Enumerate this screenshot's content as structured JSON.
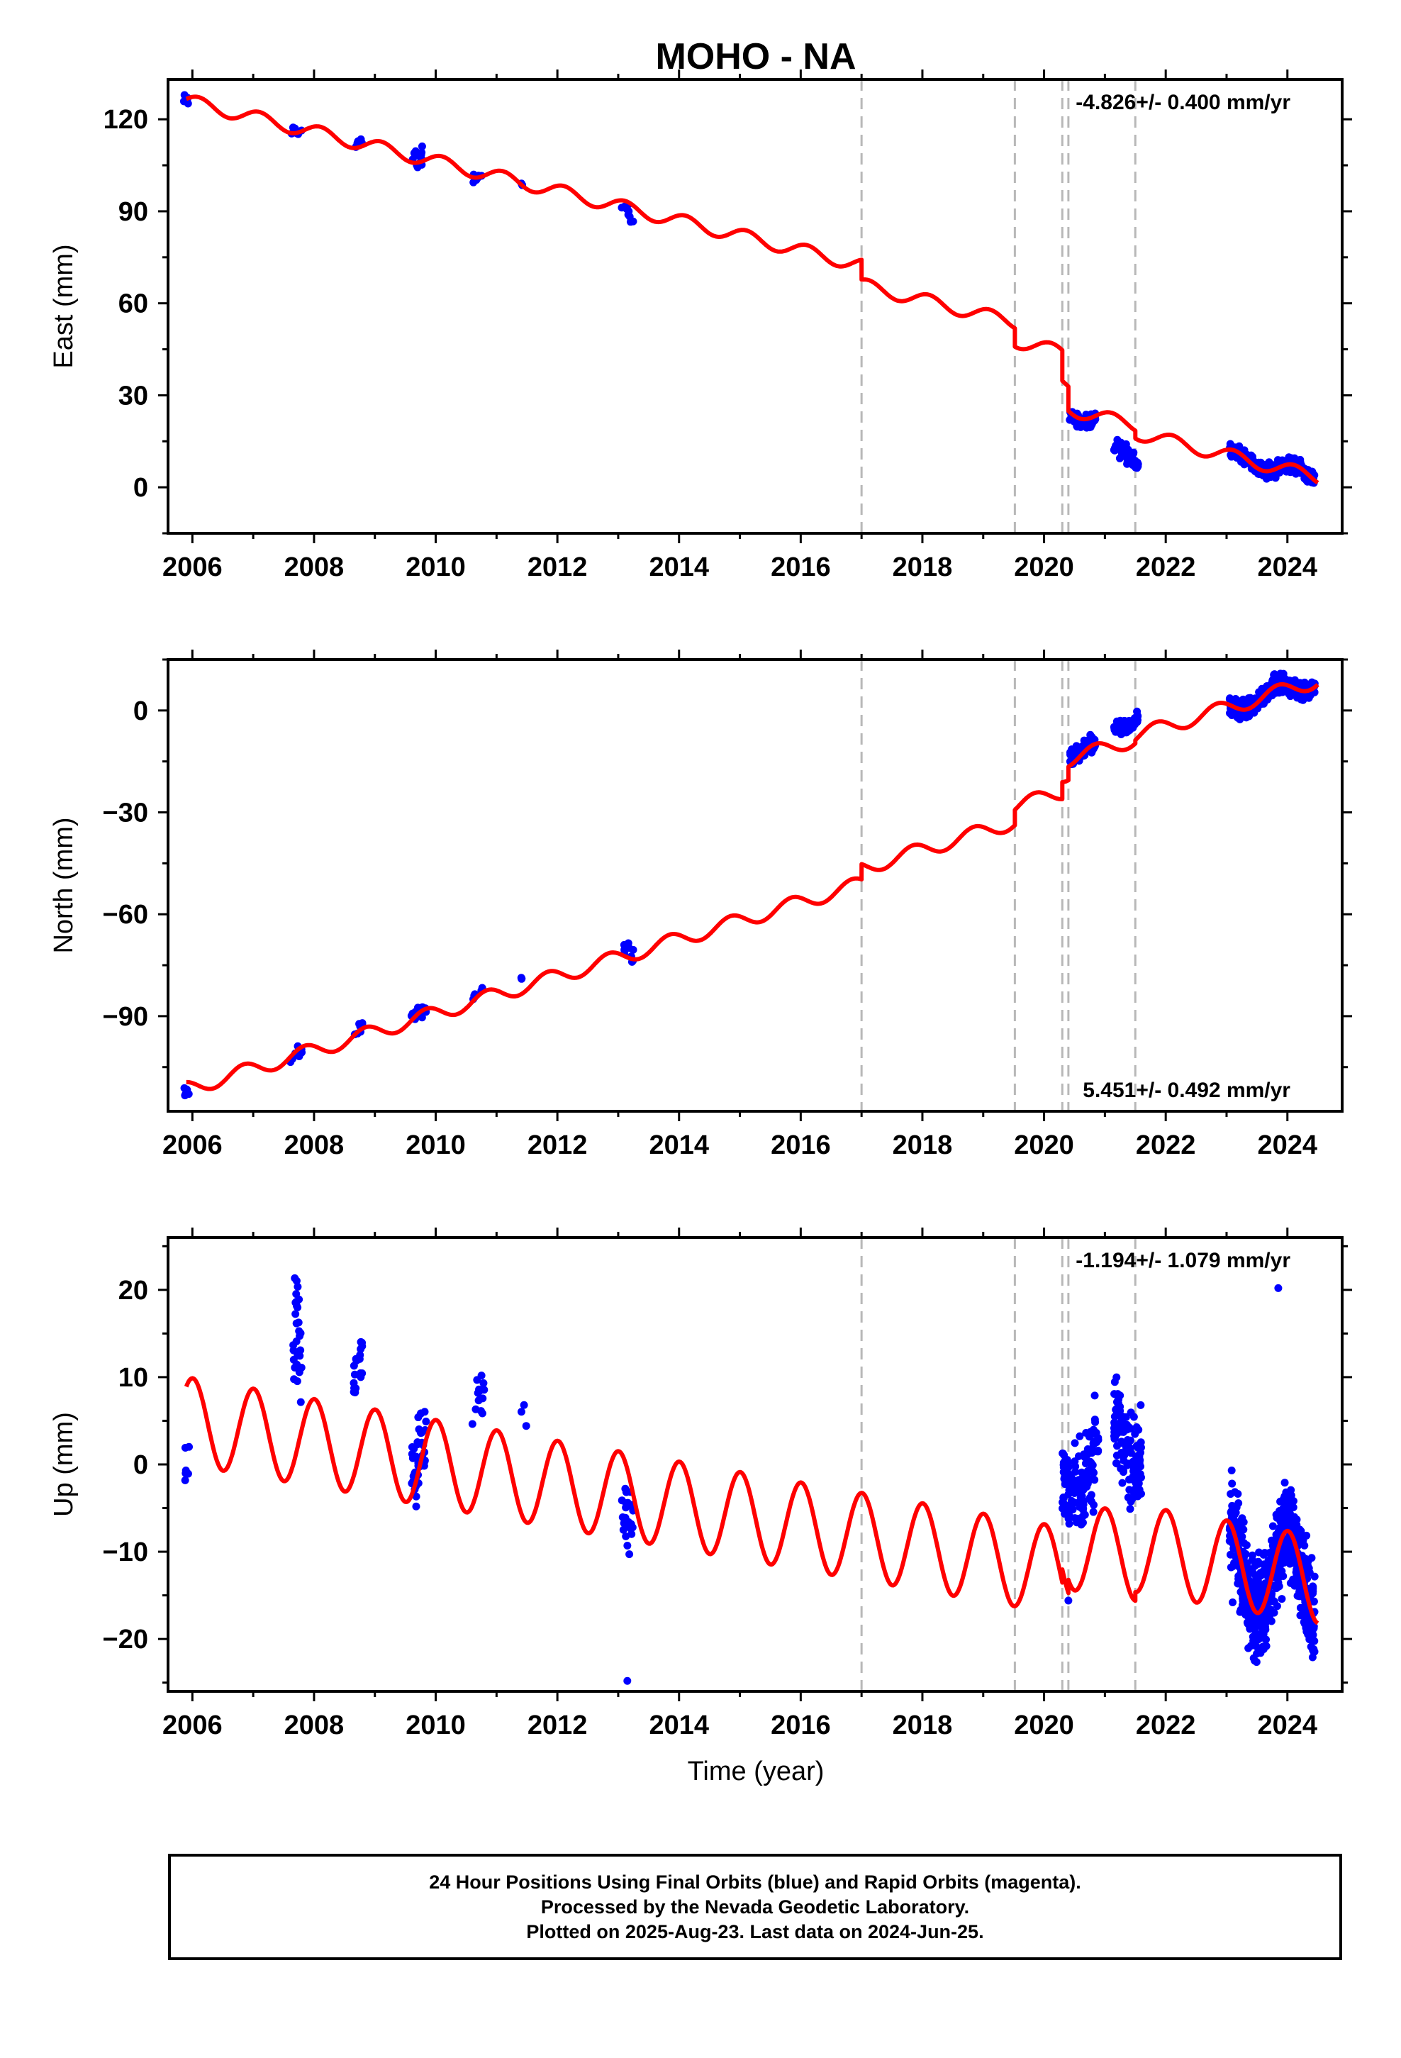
{
  "chart_data": {
    "title": "MOHO - NA",
    "x_axis": {
      "label": "Time (year)",
      "ticks": [
        2006,
        2008,
        2010,
        2012,
        2014,
        2016,
        2018,
        2020,
        2022,
        2024
      ],
      "range": [
        2005.6,
        2024.9
      ]
    },
    "step_markers": [
      2017.0,
      2019.52,
      2020.3,
      2020.4,
      2021.5
    ],
    "panels": [
      {
        "name": "east",
        "ylabel": "East (mm)",
        "ylim": [
          -15,
          133
        ],
        "yticks": [
          0,
          30,
          60,
          90,
          120
        ],
        "rate_text": "-4.826+/- 0.400 mm/yr",
        "rate_position": "top-right",
        "model": {
          "base": 126.0,
          "rate": -4.826,
          "t0": 2005.9,
          "amp_annual": 2.2,
          "phase": 0.3,
          "steps": [
            [
              2017.0,
              -6.5
            ],
            [
              2019.52,
              -6.0
            ],
            [
              2020.3,
              -10.0
            ],
            [
              2020.4,
              -8.0
            ],
            [
              2021.5,
              -2.5
            ]
          ]
        },
        "observation_clusters": [
          {
            "t": [
              2005.85,
              2005.95
            ],
            "center": 126,
            "spread": 1.5,
            "n": 6
          },
          {
            "t": [
              2007.6,
              2007.8
            ],
            "center": 116,
            "spread": 1.5,
            "n": 8
          },
          {
            "t": [
              2008.65,
              2008.8
            ],
            "center": 112.5,
            "spread": 1.5,
            "n": 8
          },
          {
            "t": [
              2009.6,
              2009.85
            ],
            "center": 107,
            "spread": 2.5,
            "n": 14
          },
          {
            "t": [
              2010.6,
              2010.8
            ],
            "center": 101,
            "spread": 1.0,
            "n": 6
          },
          {
            "t": [
              2011.4,
              2011.5
            ],
            "center": 98,
            "spread": 0.5,
            "n": 3
          },
          {
            "t": [
              2013.05,
              2013.25
            ],
            "center": 90,
            "spread": 2.5,
            "n": 10
          },
          {
            "t": [
              2020.42,
              2020.85
            ],
            "center": 21.5,
            "spread": 1.5,
            "n": 70
          },
          {
            "t": [
              2021.15,
              2021.55
            ],
            "center": 11,
            "spread": 1.8,
            "n": 70
          },
          {
            "t": [
              2023.05,
              2024.45
            ],
            "center": null,
            "spread": 1.6,
            "n": 360
          }
        ]
      },
      {
        "name": "north",
        "ylabel": "North (mm)",
        "ylim": [
          -118,
          15
        ],
        "yticks": [
          -90,
          -60,
          -30,
          0
        ],
        "rate_text": "5.451+/- 0.492 mm/yr",
        "rate_position": "bottom-right",
        "model": {
          "base": -111.5,
          "rate": 5.451,
          "t0": 2005.9,
          "amp_annual": 2.2,
          "phase": 1.9,
          "steps": [
            [
              2017.0,
              4.5
            ],
            [
              2019.52,
              4.5
            ],
            [
              2020.3,
              5.0
            ],
            [
              2020.4,
              4.0
            ],
            [
              2021.5,
              1.0
            ]
          ]
        },
        "observation_clusters": [
          {
            "t": [
              2005.85,
              2005.95
            ],
            "center": -112,
            "spread": 1.5,
            "n": 6
          },
          {
            "t": [
              2007.6,
              2007.8
            ],
            "center": -100.5,
            "spread": 2.0,
            "n": 8
          },
          {
            "t": [
              2008.65,
              2008.8
            ],
            "center": -94,
            "spread": 1.2,
            "n": 8
          },
          {
            "t": [
              2009.6,
              2009.85
            ],
            "center": -89,
            "spread": 1.5,
            "n": 14
          },
          {
            "t": [
              2010.6,
              2010.8
            ],
            "center": -83.5,
            "spread": 1.0,
            "n": 6
          },
          {
            "t": [
              2011.4,
              2011.5
            ],
            "center": -79,
            "spread": 0.8,
            "n": 3
          },
          {
            "t": [
              2013.05,
              2013.25
            ],
            "center": -71,
            "spread": 2.5,
            "n": 10
          },
          {
            "t": [
              2020.42,
              2020.85
            ],
            "center": -12,
            "spread": 2.0,
            "n": 70
          },
          {
            "t": [
              2021.15,
              2021.55
            ],
            "center": -5,
            "spread": 1.5,
            "n": 70
          },
          {
            "t": [
              2023.05,
              2024.45
            ],
            "center": null,
            "spread": 2.0,
            "n": 360
          }
        ]
      },
      {
        "name": "up",
        "ylabel": "Up (mm)",
        "ylim": [
          -26,
          26
        ],
        "yticks": [
          -20,
          -10,
          0,
          10,
          20
        ],
        "rate_text": "-1.194+/- 1.079 mm/yr",
        "rate_position": "top-right",
        "model": {
          "base": 5.0,
          "rate": -1.194,
          "t0": 2005.9,
          "amp_annual": 5.0,
          "phase": 0.9,
          "steps": [
            [
              2020.3,
              1.5
            ],
            [
              2020.4,
              1.5
            ],
            [
              2021.5,
              1.0
            ]
          ]
        },
        "observation_clusters": [
          {
            "t": [
              2005.85,
              2005.95
            ],
            "center": 0.5,
            "spread": 1.8,
            "n": 6
          },
          {
            "t": [
              2007.65,
              2007.8
            ],
            "center": 14,
            "spread": 5.5,
            "n": 30
          },
          {
            "t": [
              2008.65,
              2008.8
            ],
            "center": 11,
            "spread": 2.5,
            "n": 18
          },
          {
            "t": [
              2009.6,
              2009.85
            ],
            "center": 1,
            "spread": 3.5,
            "n": 40
          },
          {
            "t": [
              2010.6,
              2010.8
            ],
            "center": 7,
            "spread": 2.5,
            "n": 14
          },
          {
            "t": [
              2011.4,
              2011.5
            ],
            "center": 4.5,
            "spread": 1.5,
            "n": 3
          },
          {
            "t": [
              2013.05,
              2013.25
            ],
            "center": -5.5,
            "spread": 3.5,
            "n": 24
          },
          {
            "t": [
              2020.3,
              2020.9
            ],
            "center": -3,
            "spread": 3.8,
            "n": 140
          },
          {
            "t": [
              2021.15,
              2021.6
            ],
            "center": 1,
            "spread": 3.5,
            "n": 130
          },
          {
            "t": [
              2023.05,
              2024.45
            ],
            "center": null,
            "spread": 3.8,
            "n": 650
          }
        ],
        "outliers": [
          [
            2013.15,
            -24.8
          ],
          [
            2023.1,
            -15.8
          ],
          [
            2023.85,
            20.2
          ],
          [
            2020.4,
            -15.6
          ]
        ]
      }
    ],
    "series": [
      {
        "name": "24 Hour Positions Using Final Orbits (blue)",
        "color": "#0000ff"
      },
      {
        "name": "Rapid Orbits (magenta)",
        "color": "#ff00ff"
      },
      {
        "name": "model",
        "color": "#ff0000"
      }
    ]
  },
  "caption": {
    "line1": "24 Hour Positions Using Final Orbits (blue) and Rapid Orbits (magenta).",
    "line2": "Processed by the Nevada Geodetic Laboratory.",
    "line3": "Plotted on 2025-Aug-23. Last data on 2024-Jun-25."
  }
}
